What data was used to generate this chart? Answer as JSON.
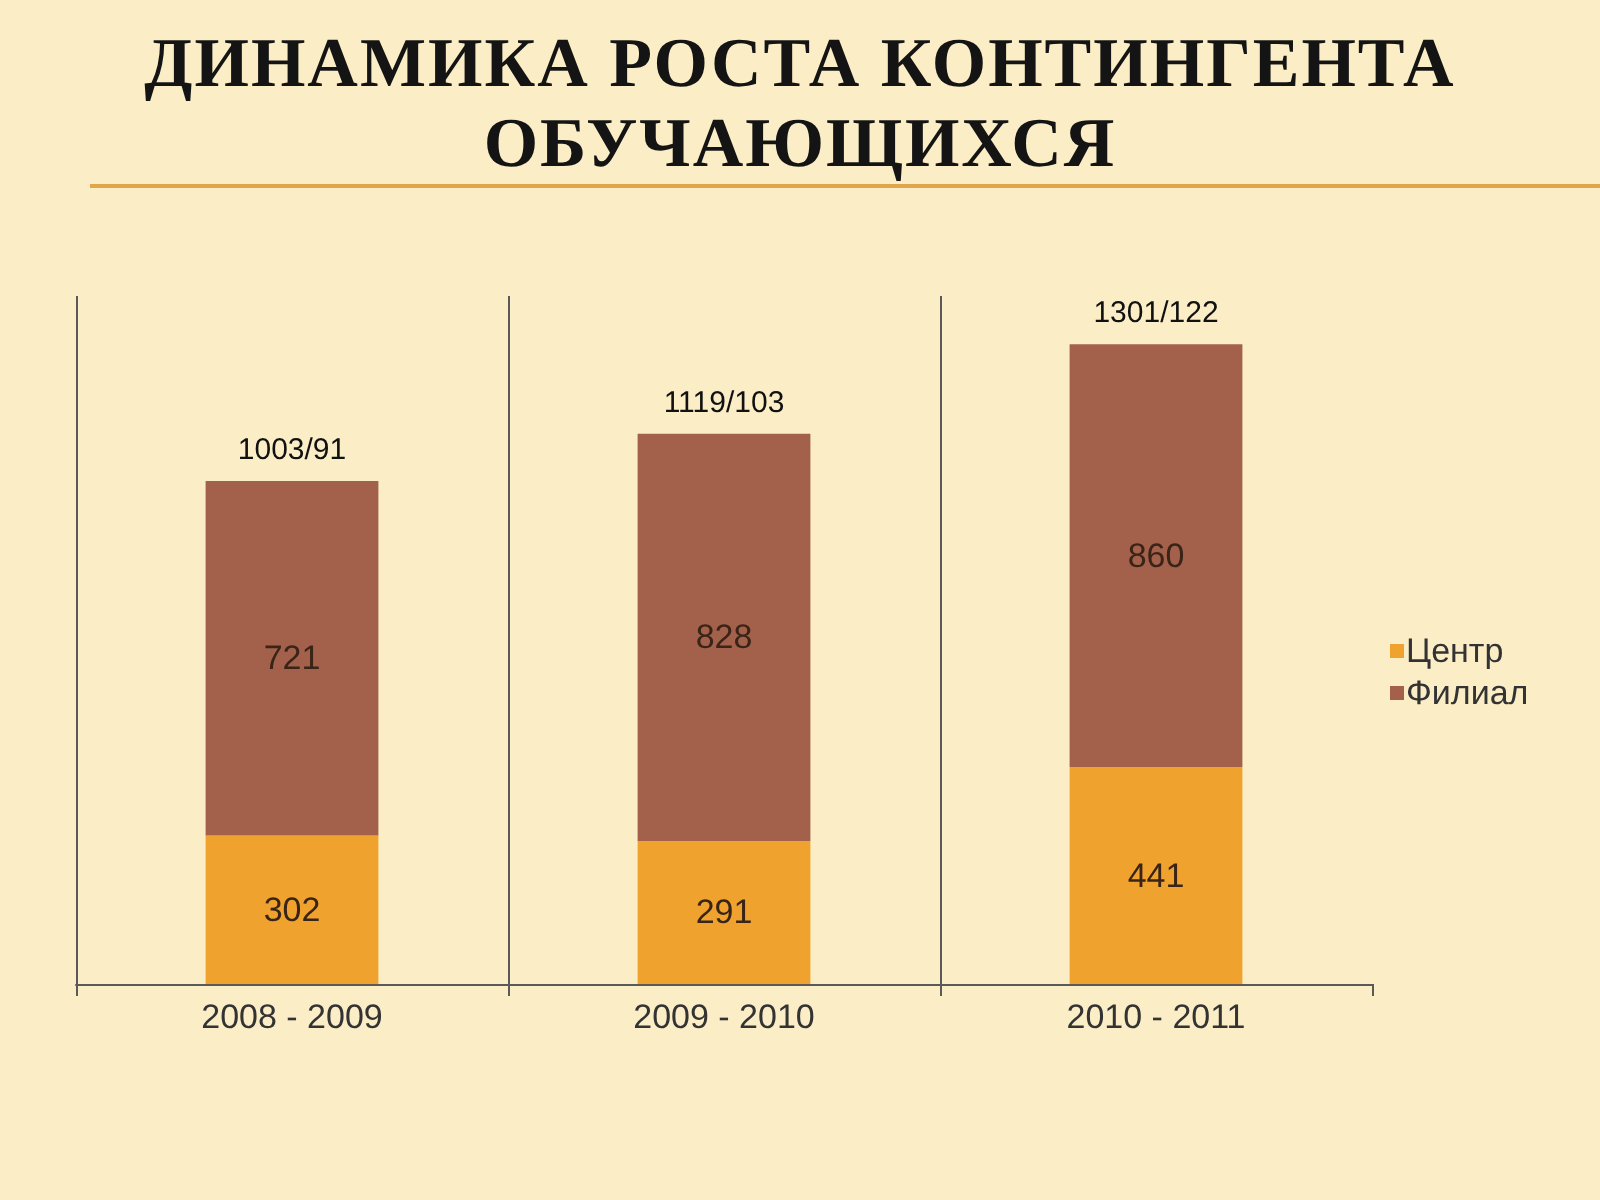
{
  "chart_data": {
    "type": "bar",
    "title": "ДИНАМИКА РОСТА КОНТИНГЕНТА ОБУЧАЮЩИХСЯ",
    "categories": [
      "2008 - 2009",
      "2009 - 2010",
      "2010 - 2011"
    ],
    "stacked": true,
    "series": [
      {
        "name": "Центр",
        "color": "#f0a22e",
        "values": [
          302,
          291,
          441
        ]
      },
      {
        "name": "Филиал",
        "color": "#a3614c",
        "values": [
          721,
          828,
          860
        ]
      }
    ],
    "data_labels": true,
    "totals": [
      "1003/91",
      "1119/103",
      "1301/122"
    ],
    "legend": "right",
    "grid": "x",
    "tick_labels": "x"
  }
}
